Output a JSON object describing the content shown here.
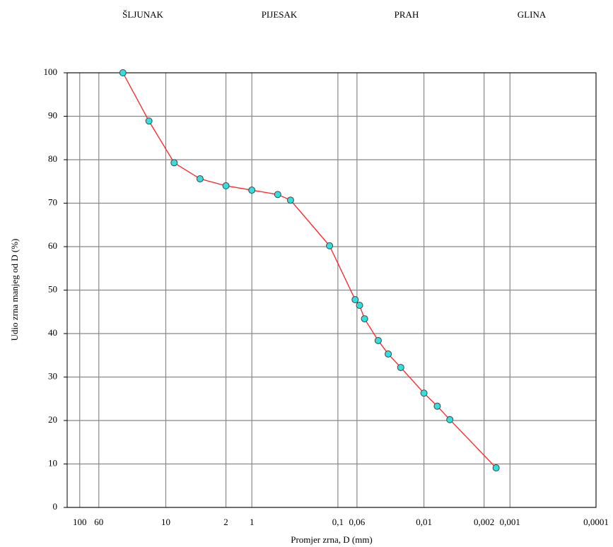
{
  "chart_data": {
    "type": "line",
    "region_labels": [
      "ŠLJUNAK",
      "PIJESAK",
      "PRAH",
      "GLINA"
    ],
    "xlabel": "Promjer zrna, D (mm)",
    "ylabel": "Udio zrna manjeg od D (%)",
    "x": [
      31.5,
      15.7,
      8,
      4,
      2,
      1,
      0.5,
      0.355,
      0.125,
      0.063,
      0.056,
      0.049,
      0.034,
      0.026,
      0.0186,
      0.01,
      0.007,
      0.005,
      0.00145
    ],
    "values": [
      100,
      88.9,
      79.3,
      75.6,
      74.0,
      73.0,
      72.0,
      70.7,
      60.2,
      47.8,
      46.5,
      43.4,
      38.4,
      35.3,
      32.2,
      26.3,
      23.3,
      20.2,
      9.1
    ],
    "color": "#ff2020",
    "marker_color": "#33dede",
    "xscale": "log",
    "xlim": [
      140,
      0.0001
    ],
    "ylim": [
      0,
      100
    ],
    "xticks": [
      100,
      60,
      10,
      2,
      1,
      {
        "value": 0.1,
        "label": "0,1"
      },
      {
        "value": 0.06,
        "label": "0,06"
      },
      {
        "value": 0.01,
        "label": "0,01"
      },
      {
        "value": 0.002,
        "label": "0,002"
      },
      {
        "value": 0.001,
        "label": "0,001"
      },
      {
        "value": 0.0001,
        "label": "0,0001"
      }
    ],
    "yticks": [
      0,
      10,
      20,
      30,
      40,
      50,
      60,
      70,
      80,
      90,
      100
    ],
    "grid": true
  }
}
